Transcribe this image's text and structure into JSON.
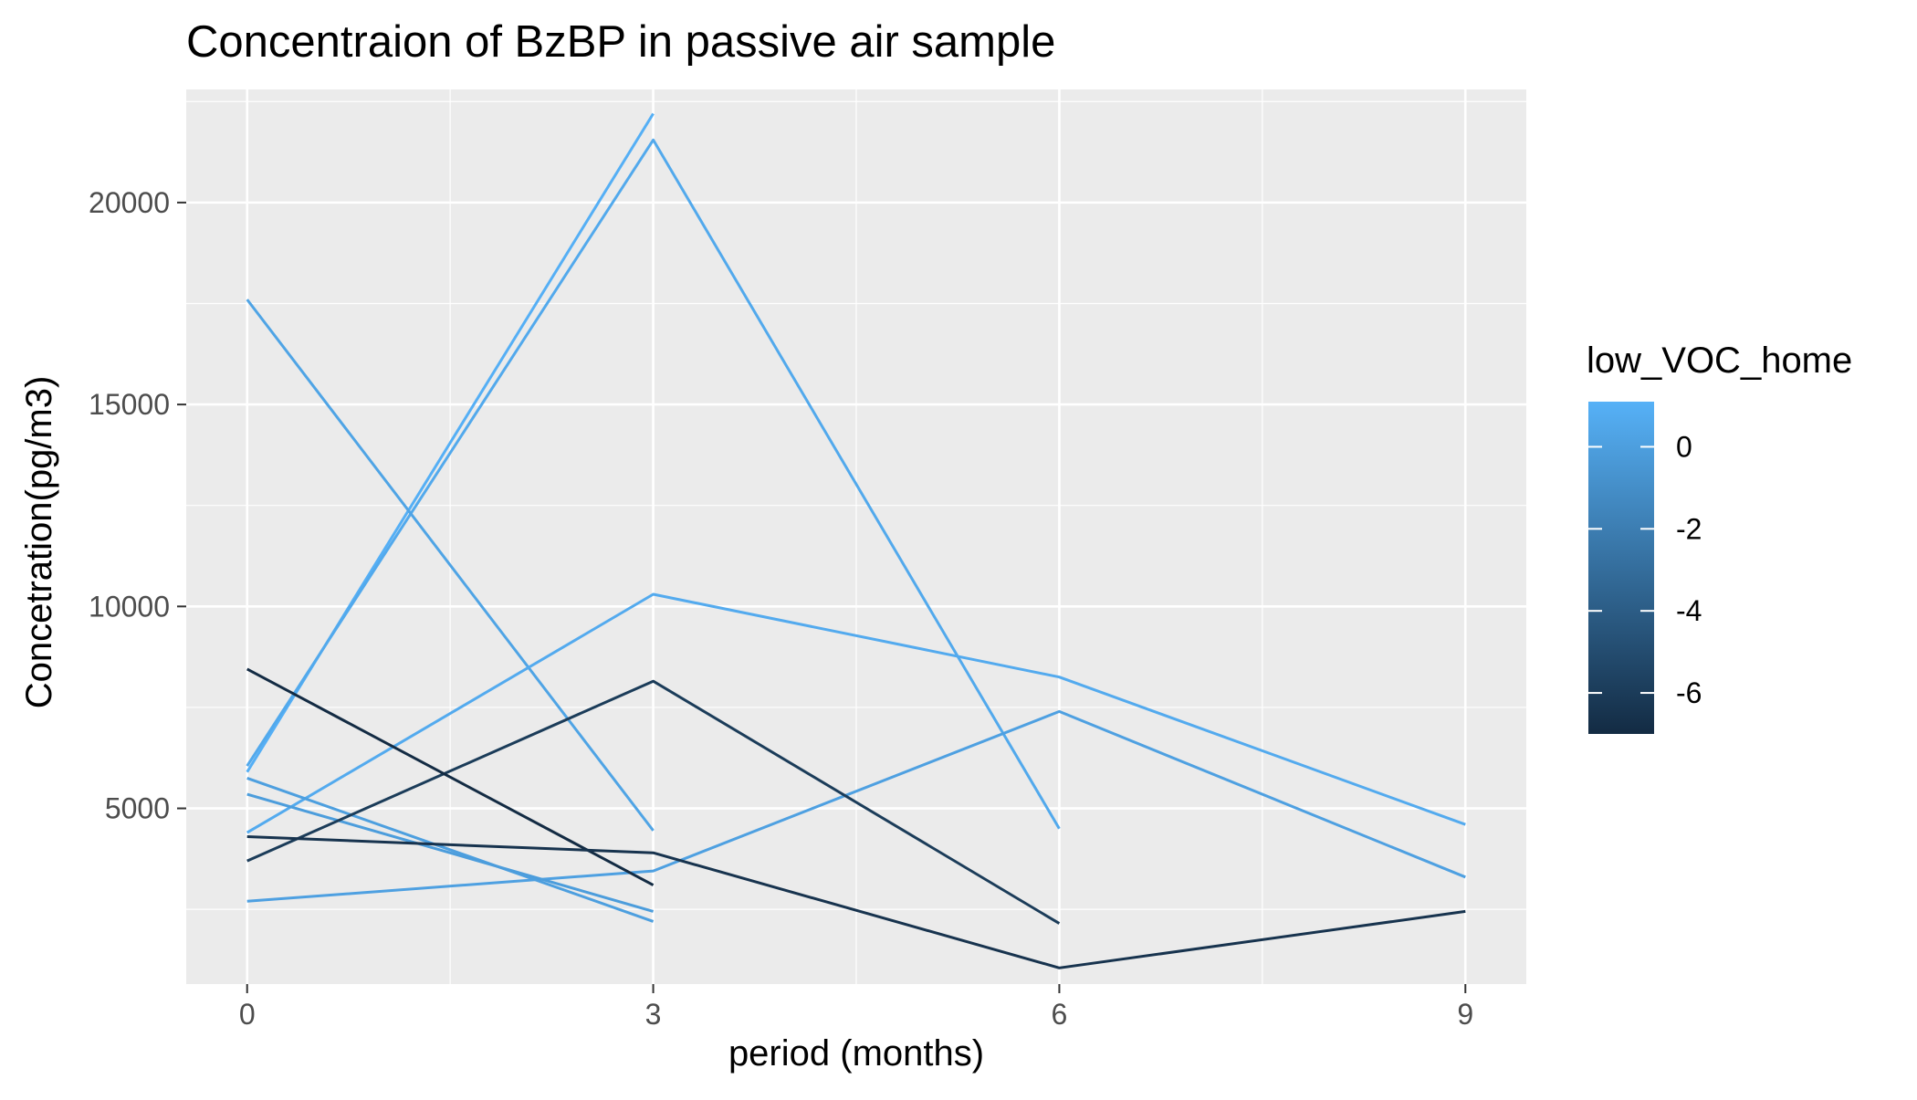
{
  "chart_data": {
    "type": "line",
    "title": "Concentraion of BzBP in passive air sample",
    "xlabel": "period (months)",
    "ylabel": "Concetration(pg/m3)",
    "x_ticks": [
      0,
      3,
      6,
      9
    ],
    "y_ticks": [
      5000,
      10000,
      15000,
      20000
    ],
    "xlim": [
      -0.45,
      9.45
    ],
    "ylim": [
      650,
      22800
    ],
    "grid": true,
    "legend": {
      "title": "low_VOC_home",
      "position": "right",
      "type": "colorbar",
      "range": [
        -7,
        1.1
      ],
      "ticks": [
        0,
        -2,
        -4,
        -6
      ],
      "colors": {
        "low": "#132b43",
        "high": "#56b1f7"
      }
    },
    "series": [
      {
        "c": 1.0,
        "x": [
          0,
          3
        ],
        "y": [
          5900,
          22200
        ]
      },
      {
        "c": 0.6,
        "x": [
          0,
          3,
          6
        ],
        "y": [
          6050,
          21550,
          4500
        ]
      },
      {
        "c": 0.3,
        "x": [
          0,
          3
        ],
        "y": [
          17600,
          4450
        ]
      },
      {
        "c": 0.7,
        "x": [
          0,
          3,
          6,
          9
        ],
        "y": [
          4400,
          10300,
          8250,
          4600
        ]
      },
      {
        "c": 0.1,
        "x": [
          0,
          3,
          6,
          9
        ],
        "y": [
          2700,
          3450,
          7400,
          3300
        ]
      },
      {
        "c": 0.0,
        "x": [
          0,
          3
        ],
        "y": [
          5750,
          2200
        ]
      },
      {
        "c": -0.1,
        "x": [
          0,
          3
        ],
        "y": [
          5350,
          2450
        ]
      },
      {
        "c": -6.0,
        "x": [
          0,
          3,
          6
        ],
        "y": [
          3700,
          8150,
          2150
        ]
      },
      {
        "c": -7.0,
        "x": [
          0,
          3
        ],
        "y": [
          8450,
          3100
        ]
      },
      {
        "c": -6.5,
        "x": [
          0,
          3,
          6,
          9
        ],
        "y": [
          4300,
          3900,
          1050,
          2450
        ]
      }
    ]
  }
}
